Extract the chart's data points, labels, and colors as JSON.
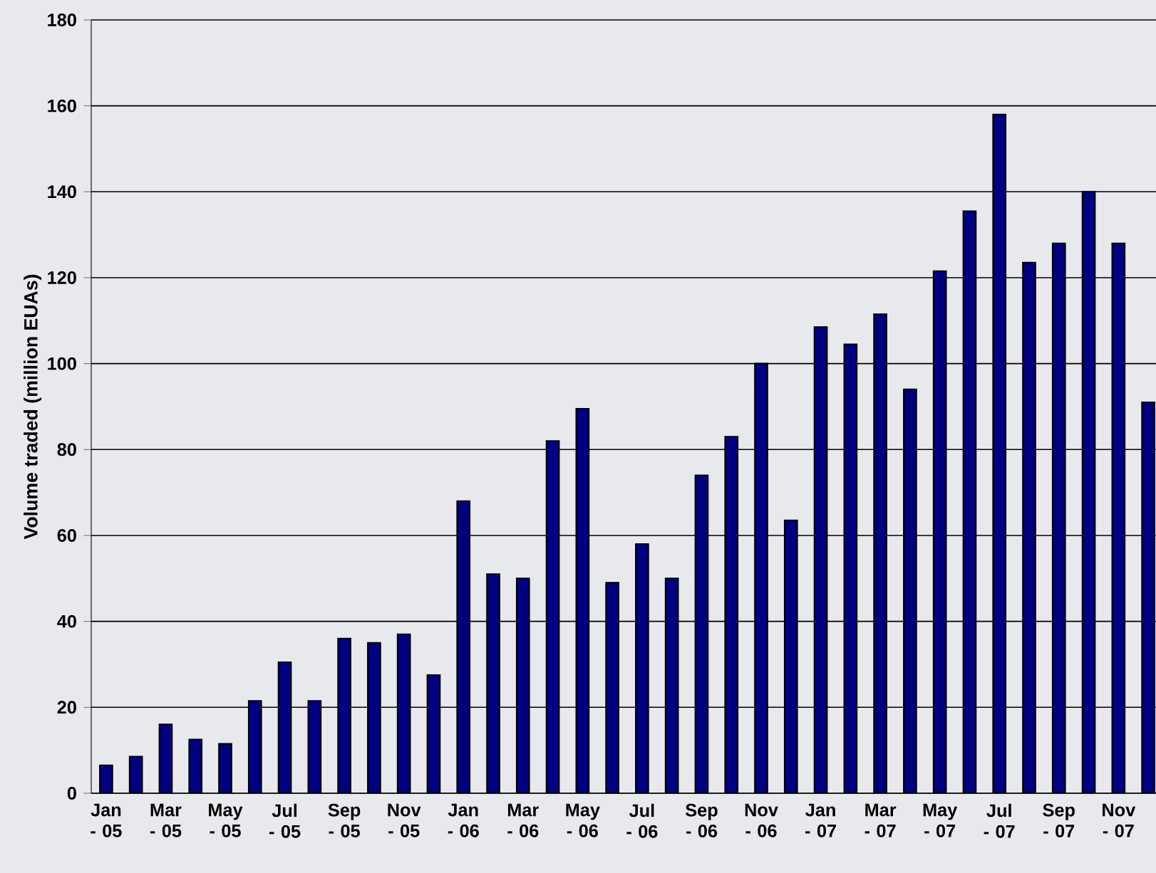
{
  "chart_data": {
    "type": "bar",
    "ylabel": "Volume traded (million EUAs)",
    "categories": [
      "Jan - 05",
      null,
      "Mar - 05",
      null,
      "May - 05",
      null,
      "Jul - 05",
      null,
      "Sep - 05",
      null,
      "Nov - 05",
      null,
      "Jan - 06",
      null,
      "Mar - 06",
      null,
      "May - 06",
      null,
      "Jul - 06",
      null,
      "Sep - 06",
      null,
      "Nov - 06",
      null,
      "Jan - 07",
      null,
      "Mar - 07",
      null,
      "May - 07",
      null,
      "Jul - 07",
      null,
      "Sep - 07",
      null,
      "Nov - 07",
      null
    ],
    "values": [
      6.5,
      8.5,
      16,
      12.5,
      11.5,
      21.5,
      30.5,
      21.5,
      36,
      35,
      37,
      27.5,
      68,
      51,
      50,
      82,
      89.5,
      49,
      58,
      50,
      74,
      83,
      100,
      63.5,
      108.5,
      104.5,
      111.5,
      94,
      121.5,
      135.5,
      158,
      123.5,
      128,
      140,
      128,
      91
    ],
    "color": "#000080",
    "ylim": [
      0,
      180
    ],
    "yticks": [
      0,
      20,
      40,
      60,
      80,
      100,
      120,
      140,
      160,
      180
    ],
    "grid": "y"
  }
}
